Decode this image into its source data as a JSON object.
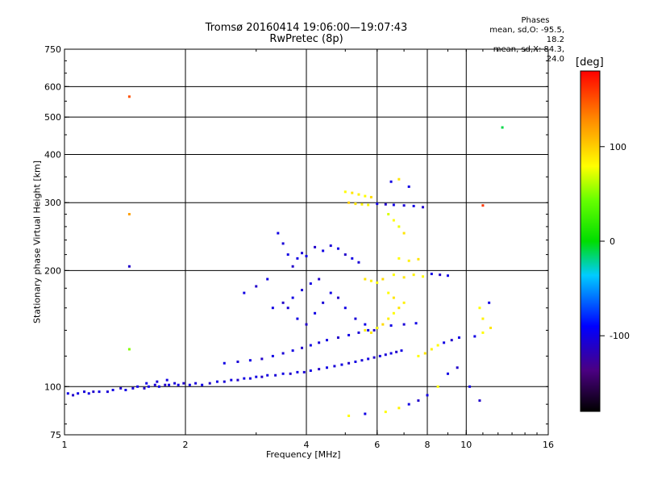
{
  "header": {
    "title": "Tromsø 20160414 19:06:00—19:07:43",
    "subtitle": "RwPretec (8p)"
  },
  "stats": {
    "heading": "Phases",
    "line_o": "mean, sd,O: -95.5, 18.2",
    "line_x": "mean, sd,X:  84.3, 24.0"
  },
  "colorbar": {
    "unit_label": "[deg]",
    "ticks": [
      {
        "value": 100,
        "label": "100"
      },
      {
        "value": 0,
        "label": "0"
      },
      {
        "value": -100,
        "label": "-100"
      }
    ],
    "range": [
      -180,
      180
    ]
  },
  "chart_data": {
    "type": "scatter",
    "xlabel": "Frequency [MHz]",
    "ylabel": "Stationary phase Virtual Height [km]",
    "x_scale": "log",
    "y_scale": "log",
    "xlim": [
      1,
      16
    ],
    "ylim": [
      75,
      750
    ],
    "x_ticks": [
      {
        "value": 1,
        "label": "1"
      },
      {
        "value": 2,
        "label": "2"
      },
      {
        "value": 4,
        "label": "4"
      },
      {
        "value": 6,
        "label": "6"
      },
      {
        "value": 8,
        "label": "8"
      },
      {
        "value": 10,
        "label": "10"
      },
      {
        "value": 16,
        "label": "16"
      }
    ],
    "y_ticks": [
      {
        "value": 75,
        "label": "75"
      },
      {
        "value": 100,
        "label": "100"
      },
      {
        "value": 200,
        "label": "200"
      },
      {
        "value": 300,
        "label": "300"
      },
      {
        "value": 400,
        "label": "400"
      },
      {
        "value": 500,
        "label": "500"
      },
      {
        "value": 600,
        "label": "600"
      },
      {
        "value": 750,
        "label": "750"
      }
    ],
    "grid_x": [
      2,
      4,
      6,
      8,
      10
    ],
    "grid_y": [
      100,
      200,
      300,
      400,
      500,
      600
    ],
    "color_by": "phase [deg]",
    "points": [
      [
        1.02,
        96,
        -100
      ],
      [
        1.05,
        95,
        -110
      ],
      [
        1.08,
        96,
        -100
      ],
      [
        1.12,
        97,
        -105
      ],
      [
        1.15,
        96,
        -100
      ],
      [
        1.18,
        97,
        -110
      ],
      [
        1.22,
        97,
        -100
      ],
      [
        1.28,
        97,
        -105
      ],
      [
        1.32,
        98,
        -100
      ],
      [
        1.38,
        99,
        -110
      ],
      [
        1.42,
        98,
        -100
      ],
      [
        1.48,
        99,
        -105
      ],
      [
        1.52,
        100,
        -100
      ],
      [
        1.58,
        99,
        -110
      ],
      [
        1.62,
        100,
        -100
      ],
      [
        1.68,
        101,
        -105
      ],
      [
        1.72,
        100,
        -100
      ],
      [
        1.78,
        101,
        -110
      ],
      [
        1.82,
        101,
        -100
      ],
      [
        1.88,
        102,
        -105
      ],
      [
        1.92,
        101,
        -100
      ],
      [
        1.98,
        102,
        -110
      ],
      [
        2.05,
        101,
        -100
      ],
      [
        2.12,
        102,
        -105
      ],
      [
        2.2,
        101,
        -100
      ],
      [
        2.3,
        102,
        -110
      ],
      [
        2.4,
        103,
        -100
      ],
      [
        2.5,
        103,
        -105
      ],
      [
        2.6,
        104,
        -100
      ],
      [
        2.7,
        104,
        -110
      ],
      [
        2.8,
        105,
        -100
      ],
      [
        2.9,
        105,
        -105
      ],
      [
        3.0,
        106,
        -100
      ],
      [
        3.1,
        106,
        -110
      ],
      [
        3.2,
        107,
        -100
      ],
      [
        3.35,
        107,
        -105
      ],
      [
        3.5,
        108,
        -100
      ],
      [
        3.65,
        108,
        -110
      ],
      [
        3.8,
        109,
        -100
      ],
      [
        3.95,
        109,
        -105
      ],
      [
        4.1,
        110,
        -100
      ],
      [
        4.3,
        111,
        -110
      ],
      [
        4.5,
        112,
        -100
      ],
      [
        4.7,
        113,
        -105
      ],
      [
        4.9,
        114,
        -100
      ],
      [
        5.1,
        115,
        -110
      ],
      [
        5.3,
        116,
        -100
      ],
      [
        5.5,
        117,
        -105
      ],
      [
        5.7,
        118,
        -100
      ],
      [
        5.9,
        119,
        -110
      ],
      [
        6.1,
        120,
        -100
      ],
      [
        6.3,
        121,
        -105
      ],
      [
        6.5,
        122,
        -100
      ],
      [
        6.7,
        123,
        -110
      ],
      [
        6.9,
        124,
        -100
      ],
      [
        1.6,
        102,
        -100
      ],
      [
        1.7,
        103,
        -105
      ],
      [
        1.8,
        104,
        -100
      ],
      [
        2.5,
        115,
        -100
      ],
      [
        2.7,
        116,
        -105
      ],
      [
        2.9,
        117,
        -100
      ],
      [
        3.1,
        118,
        -110
      ],
      [
        3.3,
        120,
        -100
      ],
      [
        3.5,
        122,
        -105
      ],
      [
        3.7,
        124,
        -100
      ],
      [
        3.9,
        126,
        -110
      ],
      [
        4.1,
        128,
        -100
      ],
      [
        4.3,
        130,
        -105
      ],
      [
        4.5,
        132,
        -100
      ],
      [
        4.8,
        134,
        -110
      ],
      [
        5.1,
        136,
        -100
      ],
      [
        5.4,
        138,
        -105
      ],
      [
        5.7,
        140,
        -100
      ],
      [
        6.0,
        142,
        -110
      ],
      [
        6.5,
        144,
        -100
      ],
      [
        7.0,
        145,
        -105
      ],
      [
        7.5,
        146,
        -100
      ],
      [
        3.3,
        160,
        -100
      ],
      [
        3.5,
        165,
        -110
      ],
      [
        3.7,
        170,
        -100
      ],
      [
        3.9,
        178,
        -105
      ],
      [
        4.1,
        185,
        -100
      ],
      [
        4.3,
        190,
        -110
      ],
      [
        3.4,
        250,
        -100
      ],
      [
        3.5,
        235,
        -105
      ],
      [
        3.6,
        220,
        -100
      ],
      [
        3.7,
        205,
        -110
      ],
      [
        3.8,
        215,
        -100
      ],
      [
        3.9,
        222,
        -105
      ],
      [
        4.0,
        218,
        -100
      ],
      [
        4.2,
        230,
        -110
      ],
      [
        4.4,
        225,
        -100
      ],
      [
        4.6,
        232,
        -105
      ],
      [
        4.8,
        228,
        -100
      ],
      [
        5.0,
        220,
        -110
      ],
      [
        5.2,
        215,
        -100
      ],
      [
        5.4,
        210,
        -105
      ],
      [
        2.8,
        175,
        -100
      ],
      [
        3.0,
        182,
        -110
      ],
      [
        3.2,
        190,
        -100
      ],
      [
        3.6,
        160,
        -105
      ],
      [
        3.8,
        150,
        -100
      ],
      [
        4.0,
        145,
        -110
      ],
      [
        4.2,
        155,
        -100
      ],
      [
        4.4,
        165,
        -105
      ],
      [
        4.6,
        175,
        -100
      ],
      [
        4.8,
        170,
        -110
      ],
      [
        5.0,
        160,
        -100
      ],
      [
        5.3,
        150,
        -105
      ],
      [
        5.6,
        145,
        -100
      ],
      [
        5.9,
        140,
        -110
      ],
      [
        5.0,
        320,
        80
      ],
      [
        5.2,
        318,
        90
      ],
      [
        5.4,
        315,
        85
      ],
      [
        5.6,
        312,
        80
      ],
      [
        5.8,
        310,
        95
      ],
      [
        5.1,
        300,
        100
      ],
      [
        5.3,
        298,
        90
      ],
      [
        5.5,
        297,
        85
      ],
      [
        5.7,
        296,
        80
      ],
      [
        6.0,
        298,
        -100
      ],
      [
        6.3,
        297,
        -110
      ],
      [
        6.6,
        296,
        -100
      ],
      [
        7.0,
        295,
        -105
      ],
      [
        7.4,
        294,
        -100
      ],
      [
        7.8,
        292,
        -110
      ],
      [
        6.5,
        340,
        -100
      ],
      [
        6.8,
        345,
        90
      ],
      [
        7.2,
        330,
        -100
      ],
      [
        6.4,
        280,
        70
      ],
      [
        6.6,
        270,
        80
      ],
      [
        6.8,
        260,
        75
      ],
      [
        7.0,
        250,
        90
      ],
      [
        5.6,
        190,
        90
      ],
      [
        5.8,
        188,
        85
      ],
      [
        6.0,
        186,
        80
      ],
      [
        6.2,
        190,
        95
      ],
      [
        6.6,
        195,
        80
      ],
      [
        7.0,
        192,
        90
      ],
      [
        7.4,
        195,
        85
      ],
      [
        7.8,
        193,
        80
      ],
      [
        8.2,
        196,
        -100
      ],
      [
        8.6,
        195,
        -110
      ],
      [
        9.0,
        194,
        -100
      ],
      [
        6.8,
        215,
        80
      ],
      [
        7.2,
        212,
        85
      ],
      [
        7.6,
        214,
        90
      ],
      [
        5.6,
        140,
        85
      ],
      [
        5.8,
        138,
        90
      ],
      [
        6.0,
        142,
        80
      ],
      [
        6.2,
        145,
        95
      ],
      [
        6.4,
        150,
        85
      ],
      [
        6.6,
        155,
        80
      ],
      [
        6.8,
        160,
        90
      ],
      [
        7.0,
        165,
        85
      ],
      [
        6.4,
        175,
        80
      ],
      [
        6.6,
        170,
        90
      ],
      [
        7.6,
        120,
        80
      ],
      [
        7.9,
        122,
        90
      ],
      [
        8.2,
        125,
        85
      ],
      [
        8.5,
        128,
        80
      ],
      [
        8.8,
        130,
        -100
      ],
      [
        9.2,
        132,
        -110
      ],
      [
        9.6,
        134,
        -100
      ],
      [
        10.5,
        135,
        -100
      ],
      [
        11.0,
        138,
        80
      ],
      [
        11.5,
        142,
        90
      ],
      [
        11.0,
        150,
        85
      ],
      [
        10.8,
        160,
        80
      ],
      [
        11.4,
        165,
        -100
      ],
      [
        8.5,
        100,
        80
      ],
      [
        8.0,
        95,
        -100
      ],
      [
        7.6,
        92,
        -110
      ],
      [
        7.2,
        90,
        -100
      ],
      [
        6.8,
        88,
        85
      ],
      [
        6.3,
        86,
        80
      ],
      [
        5.6,
        85,
        -100
      ],
      [
        5.1,
        84,
        80
      ],
      [
        9.0,
        108,
        -100
      ],
      [
        9.5,
        112,
        -110
      ],
      [
        10.2,
        100,
        -100
      ],
      [
        10.8,
        92,
        -110
      ],
      [
        1.45,
        565,
        150
      ],
      [
        1.45,
        280,
        120
      ],
      [
        1.45,
        205,
        -110
      ],
      [
        1.45,
        125,
        50
      ],
      [
        12.3,
        470,
        -10
      ],
      [
        11.0,
        295,
        160
      ]
    ]
  }
}
